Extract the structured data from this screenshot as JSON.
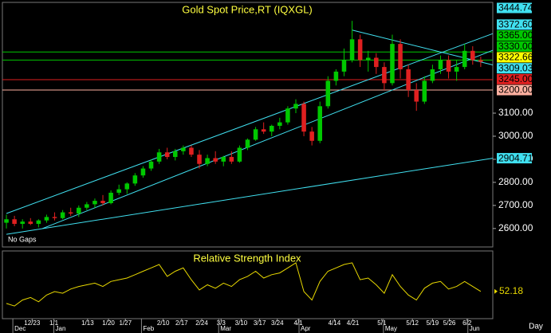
{
  "chart_data": {
    "type": "candlestick",
    "title": "Gold Spot Price,RT (IQXGL)",
    "note": "No Gaps",
    "x_unit_label": "Day",
    "up_color": "#00c800",
    "down_color": "#e02020",
    "last_price_color": "#ffff00",
    "candles": [
      [
        2625,
        2660,
        2600,
        2640
      ],
      [
        2640,
        2655,
        2610,
        2620
      ],
      [
        2620,
        2640,
        2600,
        2630
      ],
      [
        2630,
        2645,
        2615,
        2620
      ],
      [
        2620,
        2640,
        2605,
        2635
      ],
      [
        2635,
        2660,
        2625,
        2650
      ],
      [
        2650,
        2670,
        2635,
        2645
      ],
      [
        2645,
        2680,
        2640,
        2670
      ],
      [
        2670,
        2690,
        2655,
        2665
      ],
      [
        2665,
        2700,
        2650,
        2690
      ],
      [
        2690,
        2715,
        2680,
        2705
      ],
      [
        2705,
        2730,
        2690,
        2720
      ],
      [
        2720,
        2745,
        2700,
        2710
      ],
      [
        2710,
        2765,
        2705,
        2755
      ],
      [
        2755,
        2790,
        2745,
        2770
      ],
      [
        2770,
        2800,
        2750,
        2795
      ],
      [
        2795,
        2840,
        2785,
        2830
      ],
      [
        2830,
        2870,
        2820,
        2860
      ],
      [
        2860,
        2900,
        2850,
        2890
      ],
      [
        2890,
        2945,
        2880,
        2930
      ],
      [
        2930,
        2950,
        2900,
        2910
      ],
      [
        2910,
        2945,
        2895,
        2935
      ],
      [
        2935,
        2960,
        2920,
        2950
      ],
      [
        2950,
        2960,
        2910,
        2920
      ],
      [
        2920,
        2940,
        2860,
        2880
      ],
      [
        2880,
        2920,
        2870,
        2905
      ],
      [
        2905,
        2935,
        2880,
        2890
      ],
      [
        2890,
        2915,
        2870,
        2910
      ],
      [
        2910,
        2935,
        2880,
        2890
      ],
      [
        2890,
        2960,
        2885,
        2950
      ],
      [
        2950,
        2990,
        2940,
        2985
      ],
      [
        2985,
        3040,
        2980,
        3030
      ],
      [
        3030,
        3060,
        3010,
        3020
      ],
      [
        3020,
        3050,
        3000,
        3045
      ],
      [
        3045,
        3080,
        3030,
        3060
      ],
      [
        3060,
        3130,
        3050,
        3120
      ],
      [
        3120,
        3160,
        3100,
        3140
      ],
      [
        3140,
        3150,
        3000,
        3020
      ],
      [
        3020,
        3040,
        2960,
        2980
      ],
      [
        2980,
        3150,
        2970,
        3130
      ],
      [
        3130,
        3260,
        3120,
        3240
      ],
      [
        3240,
        3290,
        3220,
        3280
      ],
      [
        3280,
        3380,
        3260,
        3330
      ],
      [
        3330,
        3500,
        3320,
        3420
      ],
      [
        3420,
        3440,
        3300,
        3330
      ],
      [
        3330,
        3370,
        3280,
        3340
      ],
      [
        3340,
        3360,
        3270,
        3300
      ],
      [
        3300,
        3320,
        3200,
        3230
      ],
      [
        3230,
        3440,
        3220,
        3400
      ],
      [
        3400,
        3420,
        3250,
        3290
      ],
      [
        3290,
        3310,
        3170,
        3200
      ],
      [
        3200,
        3230,
        3110,
        3150
      ],
      [
        3150,
        3260,
        3140,
        3240
      ],
      [
        3240,
        3310,
        3230,
        3290
      ],
      [
        3290,
        3350,
        3270,
        3330
      ],
      [
        3330,
        3350,
        3250,
        3280
      ],
      [
        3280,
        3330,
        3240,
        3300
      ],
      [
        3300,
        3400,
        3290,
        3370
      ],
      [
        3370,
        3390,
        3310,
        3330
      ],
      [
        3330,
        3345,
        3300,
        3322.66
      ]
    ],
    "xlim": [
      -0.5,
      60.5
    ],
    "ylim": [
      2520,
      3580
    ],
    "yticks": [
      {
        "value": 2600,
        "label": "2600.00"
      },
      {
        "value": 2700,
        "label": "2700.00"
      },
      {
        "value": 2800,
        "label": "2800.00"
      },
      {
        "value": 2900,
        "label": "2900.00"
      },
      {
        "value": 3000,
        "label": "3000.00"
      },
      {
        "value": 3100,
        "label": "3100.00"
      }
    ],
    "xticks": [
      {
        "value": 3.2,
        "label": "12/23"
      },
      {
        "value": 5.9,
        "label": "1/1"
      },
      {
        "value": 10.1,
        "label": "1/13"
      },
      {
        "value": 12.7,
        "label": "1/20"
      },
      {
        "value": 14.8,
        "label": "1/27"
      },
      {
        "value": 19.5,
        "label": "2/10"
      },
      {
        "value": 21.8,
        "label": "2/17"
      },
      {
        "value": 24.3,
        "label": "2/24"
      },
      {
        "value": 26.7,
        "label": "3/3"
      },
      {
        "value": 29.2,
        "label": "3/10"
      },
      {
        "value": 31.5,
        "label": "3/17"
      },
      {
        "value": 33.7,
        "label": "3/24"
      },
      {
        "value": 36.3,
        "label": "4/1"
      },
      {
        "value": 40.8,
        "label": "4/14"
      },
      {
        "value": 43.1,
        "label": "4/21"
      },
      {
        "value": 46.7,
        "label": "5/1"
      },
      {
        "value": 50.5,
        "label": "5/12"
      },
      {
        "value": 53,
        "label": "5/19"
      },
      {
        "value": 55.1,
        "label": "5/26"
      },
      {
        "value": 57.3,
        "label": "6/2"
      }
    ],
    "month_ticks": [
      {
        "value": 0.8,
        "label": "Dec"
      },
      {
        "value": 5.9,
        "label": "Jan"
      },
      {
        "value": 16.8,
        "label": "Feb"
      },
      {
        "value": 26.4,
        "label": "Mar"
      },
      {
        "value": 36.4,
        "label": "Apr"
      },
      {
        "value": 46.9,
        "label": "May"
      },
      {
        "value": 57.4,
        "label": "Jun"
      }
    ],
    "levels": [
      {
        "value": 3365,
        "label": "3365.00",
        "color": "#00c800"
      },
      {
        "value": 3330,
        "label": "3330.00",
        "color": "#00c800"
      },
      {
        "value": 3245,
        "label": "3245.00",
        "color": "#e02020"
      },
      {
        "value": 3200,
        "label": "3200.00",
        "color": "#ffb0a0"
      }
    ],
    "trendlines": [
      {
        "x": [
          0,
          60.5
        ],
        "values": [
          2665,
          3444.74
        ],
        "value_labels": [
          null,
          "3444.74"
        ],
        "color": "#40e0f0"
      },
      {
        "x": [
          4.5,
          60.5
        ],
        "values": [
          2600,
          3372.6
        ],
        "value_labels": [
          null,
          "3372.60"
        ],
        "color": "#40e0f0"
      },
      {
        "x": [
          43,
          60.5
        ],
        "values": [
          3460,
          3309.03
        ],
        "value_labels": [
          null,
          "3309.03"
        ],
        "color": "#40e0f0"
      },
      {
        "x": [
          0,
          60.5
        ],
        "values": [
          2575,
          2904.71
        ],
        "value_labels": [
          null,
          "2904.71"
        ],
        "color": "#40e0f0"
      }
    ],
    "rsi": {
      "title": "Relative Strength Index",
      "color": "#e8d800",
      "ylim": [
        20,
        100
      ],
      "values": [
        38,
        35,
        42,
        45,
        40,
        48,
        52,
        50,
        55,
        58,
        60,
        62,
        58,
        64,
        66,
        68,
        72,
        76,
        80,
        84,
        70,
        76,
        80,
        66,
        54,
        60,
        56,
        62,
        58,
        66,
        70,
        76,
        68,
        72,
        74,
        80,
        86,
        52,
        42,
        64,
        76,
        80,
        84,
        86,
        66,
        68,
        60,
        50,
        72,
        58,
        48,
        42,
        56,
        62,
        64,
        55,
        58,
        64,
        58,
        52.18
      ]
    }
  }
}
